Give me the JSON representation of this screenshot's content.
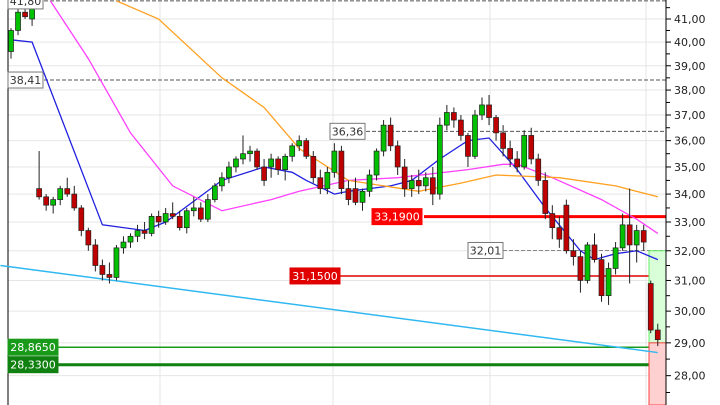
{
  "chart_data": {
    "type": "candlestick",
    "y_scale": "log",
    "ylim": [
      27.5,
      41.8
    ],
    "grid": true,
    "y_ticks": [
      "41,00",
      "40,00",
      "39,00",
      "38,00",
      "37,00",
      "36,00",
      "35,00",
      "34,00",
      "33,00",
      "32,00",
      "31,00",
      "30,00",
      "29,00",
      "28,00"
    ],
    "y_tick_values": [
      41,
      40,
      39,
      38,
      37,
      36,
      35,
      34,
      33,
      32,
      31,
      30,
      29,
      28
    ],
    "colors": {
      "up": "#00c000",
      "down": "#c00000",
      "ma_fast": "#2020e0",
      "ma_mid": "#ff40ff",
      "ma_slow": "#ffa020",
      "trendline": "#30b8f0",
      "resistance": "#ff0000",
      "support": "#008000"
    },
    "ohlc": [
      [
        39.6,
        40.6,
        39.3,
        40.5
      ],
      [
        40.5,
        41.5,
        40.3,
        41.3
      ],
      [
        41.3,
        41.6,
        41.0,
        41.1
      ],
      [
        41.0,
        41.6,
        40.7,
        41.5
      ],
      [
        34.2,
        35.6,
        33.8,
        33.9
      ],
      [
        33.9,
        34.0,
        33.4,
        33.6
      ],
      [
        33.6,
        33.9,
        33.3,
        33.8
      ],
      [
        33.8,
        34.3,
        33.6,
        34.2
      ],
      [
        34.2,
        34.6,
        33.9,
        34.0
      ],
      [
        34.0,
        34.3,
        33.4,
        33.5
      ],
      [
        33.5,
        33.6,
        32.5,
        32.7
      ],
      [
        32.7,
        32.8,
        32.0,
        32.2
      ],
      [
        32.2,
        32.4,
        31.3,
        31.5
      ],
      [
        31.5,
        31.7,
        31.0,
        31.2
      ],
      [
        31.2,
        31.6,
        30.9,
        31.1
      ],
      [
        31.1,
        32.2,
        31.0,
        32.1
      ],
      [
        32.1,
        32.5,
        31.9,
        32.3
      ],
      [
        32.3,
        32.6,
        32.1,
        32.5
      ],
      [
        32.5,
        32.9,
        32.3,
        32.7
      ],
      [
        32.7,
        33.0,
        32.4,
        32.6
      ],
      [
        32.6,
        33.3,
        32.5,
        33.2
      ],
      [
        33.2,
        33.4,
        32.8,
        33.0
      ],
      [
        33.0,
        33.5,
        32.9,
        33.3
      ],
      [
        33.3,
        33.7,
        33.1,
        33.2
      ],
      [
        33.2,
        33.4,
        32.7,
        32.8
      ],
      [
        32.8,
        33.5,
        32.6,
        33.4
      ],
      [
        33.4,
        33.9,
        33.2,
        33.5
      ],
      [
        33.5,
        33.7,
        33.0,
        33.1
      ],
      [
        33.1,
        34.0,
        33.0,
        33.8
      ],
      [
        33.8,
        34.4,
        33.7,
        34.3
      ],
      [
        34.3,
        34.8,
        34.1,
        34.6
      ],
      [
        34.6,
        35.2,
        34.4,
        35.0
      ],
      [
        35.0,
        35.4,
        34.8,
        35.3
      ],
      [
        35.3,
        36.2,
        35.1,
        35.5
      ],
      [
        35.5,
        35.8,
        35.2,
        35.6
      ],
      [
        35.6,
        35.7,
        34.9,
        35.0
      ],
      [
        35.0,
        35.3,
        34.3,
        34.5
      ],
      [
        35.0,
        35.5,
        34.6,
        35.3
      ],
      [
        35.3,
        35.4,
        34.7,
        34.9
      ],
      [
        34.9,
        35.5,
        34.5,
        35.4
      ],
      [
        35.4,
        35.9,
        35.2,
        35.8
      ],
      [
        35.8,
        36.2,
        35.6,
        36.0
      ],
      [
        36.0,
        36.1,
        35.3,
        35.4
      ],
      [
        35.4,
        35.6,
        34.4,
        34.6
      ],
      [
        34.6,
        34.9,
        34.0,
        34.2
      ],
      [
        34.2,
        35.0,
        34.0,
        34.8
      ],
      [
        34.8,
        35.9,
        34.6,
        35.6
      ],
      [
        35.6,
        35.8,
        34.0,
        34.2
      ],
      [
        34.2,
        34.5,
        33.6,
        33.8
      ],
      [
        34.2,
        34.6,
        33.6,
        33.7
      ],
      [
        33.7,
        34.2,
        33.4,
        34.1
      ],
      [
        34.1,
        34.9,
        33.9,
        34.7
      ],
      [
        34.7,
        35.7,
        34.5,
        35.6
      ],
      [
        35.6,
        36.8,
        35.4,
        36.6
      ],
      [
        36.6,
        36.9,
        35.6,
        35.8
      ],
      [
        35.8,
        36.0,
        34.7,
        35.0
      ],
      [
        35.0,
        35.3,
        33.9,
        34.2
      ],
      [
        34.2,
        34.7,
        33.9,
        34.5
      ],
      [
        34.5,
        34.9,
        34.0,
        34.3
      ],
      [
        34.3,
        34.8,
        34.1,
        34.6
      ],
      [
        34.6,
        35.0,
        33.6,
        34.0
      ],
      [
        34.0,
        36.9,
        33.8,
        36.6
      ],
      [
        36.6,
        37.4,
        36.4,
        37.1
      ],
      [
        37.1,
        37.3,
        36.5,
        36.8
      ],
      [
        36.8,
        37.0,
        36.0,
        36.2
      ],
      [
        36.2,
        36.3,
        35.0,
        35.4
      ],
      [
        35.4,
        37.2,
        35.3,
        37.0
      ],
      [
        37.0,
        37.7,
        36.8,
        37.4
      ],
      [
        37.4,
        37.8,
        36.6,
        36.9
      ],
      [
        36.9,
        37.0,
        36.0,
        36.3
      ],
      [
        36.3,
        36.6,
        35.4,
        35.7
      ],
      [
        35.7,
        36.0,
        35.0,
        35.3
      ],
      [
        35.3,
        35.6,
        34.8,
        35.0
      ],
      [
        35.0,
        36.4,
        34.9,
        36.2
      ],
      [
        36.2,
        36.5,
        35.1,
        35.3
      ],
      [
        35.3,
        35.5,
        34.3,
        34.5
      ],
      [
        34.5,
        34.8,
        33.1,
        33.3
      ],
      [
        33.3,
        33.6,
        32.4,
        32.8
      ],
      [
        32.8,
        33.2,
        32.1,
        32.4
      ],
      [
        33.6,
        33.8,
        31.9,
        32.0
      ],
      [
        32.0,
        32.4,
        31.5,
        31.8
      ],
      [
        31.8,
        32.0,
        30.6,
        31.0
      ],
      [
        31.0,
        32.3,
        30.9,
        32.2
      ],
      [
        32.2,
        32.6,
        31.6,
        31.7
      ],
      [
        31.7,
        31.9,
        30.3,
        30.5
      ],
      [
        30.5,
        31.6,
        30.2,
        31.4
      ],
      [
        31.4,
        32.3,
        31.2,
        32.1
      ],
      [
        32.1,
        33.3,
        32.0,
        32.9
      ],
      [
        32.9,
        34.2,
        30.9,
        32.2
      ],
      [
        32.2,
        32.9,
        31.6,
        32.7
      ],
      [
        32.7,
        32.9,
        32.0,
        32.3
      ],
      [
        30.9,
        31.0,
        29.3,
        29.4
      ],
      [
        29.4,
        29.6,
        28.9,
        29.1
      ]
    ],
    "moving_averages": [
      {
        "key": "ma_fast",
        "points": [
          [
            0,
            40.1
          ],
          [
            3,
            40.0
          ],
          [
            13,
            32.9
          ],
          [
            19,
            32.7
          ],
          [
            22,
            33.0
          ],
          [
            30,
            34.5
          ],
          [
            36,
            35.0
          ],
          [
            40,
            34.8
          ],
          [
            42,
            34.5
          ],
          [
            46,
            34.0
          ],
          [
            48,
            34.1
          ],
          [
            54,
            34.3
          ],
          [
            57,
            34.5
          ],
          [
            61,
            35.3
          ],
          [
            65,
            36.0
          ],
          [
            68,
            36.1
          ],
          [
            72,
            34.9
          ],
          [
            76,
            33.5
          ],
          [
            81,
            32.0
          ],
          [
            83,
            31.7
          ],
          [
            86,
            31.9
          ],
          [
            89,
            32.0
          ],
          [
            92,
            31.7
          ]
        ]
      },
      {
        "key": "ma_mid",
        "points": [
          [
            5.6,
            41.8
          ],
          [
            11,
            39.3
          ],
          [
            17,
            36.3
          ],
          [
            23,
            34.3
          ],
          [
            30,
            33.4
          ],
          [
            37,
            33.8
          ],
          [
            41,
            34.1
          ],
          [
            48,
            34.5
          ],
          [
            55,
            34.6
          ],
          [
            65,
            34.9
          ],
          [
            70,
            35.1
          ],
          [
            72,
            35.1
          ],
          [
            77,
            34.6
          ],
          [
            84,
            33.8
          ],
          [
            89,
            33.1
          ],
          [
            92,
            32.6
          ]
        ]
      },
      {
        "key": "ma_slow",
        "points": [
          [
            15,
            41.8
          ],
          [
            21,
            41.0
          ],
          [
            30,
            38.5
          ],
          [
            36,
            37.3
          ],
          [
            41,
            35.7
          ],
          [
            48,
            34.5
          ],
          [
            58,
            34.1
          ],
          [
            64,
            34.4
          ],
          [
            69,
            34.7
          ],
          [
            78,
            34.6
          ],
          [
            86,
            34.3
          ],
          [
            92,
            33.9
          ]
        ]
      }
    ],
    "trendline": {
      "from": [
        -1.5,
        31.5
      ],
      "to": [
        92,
        28.7
      ]
    },
    "levels": [
      {
        "label": "41,80",
        "value": 41.8,
        "style": "dashed",
        "color": "#555555"
      },
      {
        "label": "38,41",
        "value": 38.41,
        "style": "dashed",
        "color": "#555555"
      },
      {
        "label": "36,36",
        "value": 36.36,
        "style": "dashed",
        "color": "#555555"
      },
      {
        "label": "33,1900",
        "value": 33.19,
        "style": "solid-thick",
        "color": "#ff0000"
      },
      {
        "label": "32,01",
        "value": 32.01,
        "style": "dashed",
        "color": "#888888"
      },
      {
        "label": "31,1500",
        "value": 31.15,
        "style": "solid",
        "color": "#e00000"
      },
      {
        "label": "28,8650",
        "value": 28.865,
        "style": "solid",
        "color": "#1a9a1a"
      },
      {
        "label": "28,3300",
        "value": 28.33,
        "style": "solid-thick",
        "color": "#108010"
      }
    ],
    "target_zone": {
      "upper": 32.0,
      "entry": 29.0
    }
  }
}
